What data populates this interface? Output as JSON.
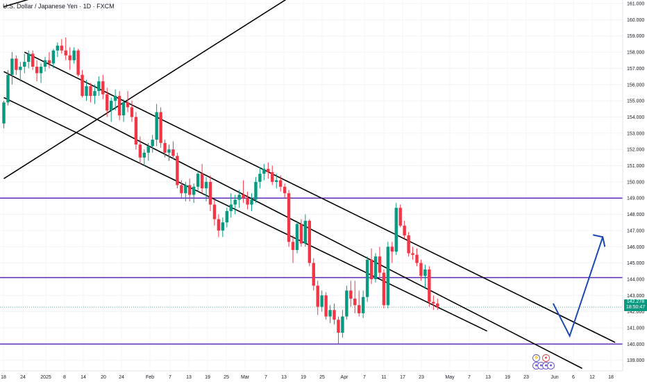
{
  "header": {
    "title": "U.S. Dollar / Japanese Yen · 1D · FXCM"
  },
  "price_badge": {
    "price": "142.278",
    "countdown": "18:50:47"
  },
  "colors": {
    "up": "#089981",
    "down": "#f23645",
    "level": "#5b2bb8",
    "trend": "#000000",
    "projection": "#1848b0"
  },
  "events": {
    "icons": [
      "lightning-icon",
      "flag-icon",
      "flag-icon",
      "flag-icon",
      "flag-icon",
      "flag-icon"
    ]
  },
  "chart_data": {
    "type": "candlestick",
    "title": "U.S. Dollar / Japanese Yen · 1D · FXCM",
    "y_ticks": [
      "161.000",
      "160.000",
      "159.000",
      "158.000",
      "157.000",
      "156.000",
      "155.000",
      "154.000",
      "153.000",
      "152.000",
      "151.000",
      "150.000",
      "149.000",
      "148.000",
      "147.000",
      "146.000",
      "145.000",
      "144.000",
      "143.000",
      "142.000",
      "141.000",
      "140.000",
      "139.000"
    ],
    "x_ticks": [
      "18",
      "24",
      "2025",
      "8",
      "14",
      "20",
      "24",
      "Feb",
      "7",
      "13",
      "19",
      "25",
      "Mar",
      "7",
      "13",
      "19",
      "25",
      "Apr",
      "7",
      "11",
      "17",
      "23",
      "May",
      "7",
      "13",
      "19",
      "23",
      "Jun",
      "6",
      "12",
      "18"
    ],
    "ylim": [
      138.4,
      161.2
    ],
    "horizontal_levels": [
      149.0,
      144.1,
      140.0
    ],
    "current_price": 142.278,
    "candles": [
      {
        "o": 153.6,
        "h": 155.0,
        "l": 153.3,
        "c": 154.9
      },
      {
        "o": 154.9,
        "h": 156.9,
        "l": 154.7,
        "c": 156.6
      },
      {
        "o": 156.6,
        "h": 158.0,
        "l": 156.0,
        "c": 157.6
      },
      {
        "o": 157.6,
        "h": 157.8,
        "l": 156.6,
        "c": 156.9
      },
      {
        "o": 156.9,
        "h": 157.4,
        "l": 156.2,
        "c": 157.1
      },
      {
        "o": 157.1,
        "h": 157.9,
        "l": 156.7,
        "c": 157.4
      },
      {
        "o": 157.4,
        "h": 158.1,
        "l": 157.0,
        "c": 157.9
      },
      {
        "o": 157.9,
        "h": 158.1,
        "l": 156.9,
        "c": 157.1
      },
      {
        "o": 157.1,
        "h": 157.5,
        "l": 156.2,
        "c": 156.7
      },
      {
        "o": 156.7,
        "h": 157.3,
        "l": 156.1,
        "c": 157.1
      },
      {
        "o": 157.1,
        "h": 157.7,
        "l": 156.8,
        "c": 157.5
      },
      {
        "o": 157.5,
        "h": 158.0,
        "l": 157.0,
        "c": 157.3
      },
      {
        "o": 157.3,
        "h": 158.2,
        "l": 157.0,
        "c": 158.1
      },
      {
        "o": 158.1,
        "h": 158.6,
        "l": 157.7,
        "c": 158.4
      },
      {
        "o": 158.4,
        "h": 158.8,
        "l": 157.9,
        "c": 158.1
      },
      {
        "o": 158.1,
        "h": 158.9,
        "l": 157.5,
        "c": 157.8
      },
      {
        "o": 157.8,
        "h": 158.3,
        "l": 156.9,
        "c": 157.5
      },
      {
        "o": 157.5,
        "h": 158.3,
        "l": 157.3,
        "c": 158.1
      },
      {
        "o": 158.1,
        "h": 158.2,
        "l": 156.5,
        "c": 156.6
      },
      {
        "o": 156.6,
        "h": 156.9,
        "l": 155.2,
        "c": 155.3
      },
      {
        "o": 155.3,
        "h": 156.3,
        "l": 155.0,
        "c": 155.9
      },
      {
        "o": 155.9,
        "h": 156.1,
        "l": 154.9,
        "c": 155.3
      },
      {
        "o": 155.3,
        "h": 156.0,
        "l": 154.8,
        "c": 155.6
      },
      {
        "o": 155.6,
        "h": 156.5,
        "l": 155.3,
        "c": 156.2
      },
      {
        "o": 156.2,
        "h": 156.6,
        "l": 155.1,
        "c": 155.4
      },
      {
        "o": 155.4,
        "h": 155.8,
        "l": 154.0,
        "c": 154.4
      },
      {
        "o": 154.4,
        "h": 155.2,
        "l": 153.7,
        "c": 155.0
      },
      {
        "o": 155.0,
        "h": 155.7,
        "l": 154.4,
        "c": 155.3
      },
      {
        "o": 155.3,
        "h": 155.6,
        "l": 153.8,
        "c": 154.1
      },
      {
        "o": 154.1,
        "h": 155.1,
        "l": 153.7,
        "c": 154.9
      },
      {
        "o": 154.9,
        "h": 155.6,
        "l": 154.3,
        "c": 154.6
      },
      {
        "o": 154.6,
        "h": 155.0,
        "l": 153.7,
        "c": 154.0
      },
      {
        "o": 154.0,
        "h": 154.3,
        "l": 152.0,
        "c": 152.3
      },
      {
        "o": 152.3,
        "h": 152.8,
        "l": 151.1,
        "c": 151.5
      },
      {
        "o": 151.5,
        "h": 152.0,
        "l": 151.0,
        "c": 151.8
      },
      {
        "o": 151.8,
        "h": 152.4,
        "l": 151.3,
        "c": 152.2
      },
      {
        "o": 152.2,
        "h": 152.9,
        "l": 151.8,
        "c": 152.6
      },
      {
        "o": 152.6,
        "h": 154.8,
        "l": 152.2,
        "c": 154.3
      },
      {
        "o": 154.3,
        "h": 154.6,
        "l": 152.1,
        "c": 152.4
      },
      {
        "o": 152.4,
        "h": 152.6,
        "l": 151.5,
        "c": 151.8
      },
      {
        "o": 151.8,
        "h": 152.3,
        "l": 151.3,
        "c": 152.0
      },
      {
        "o": 152.0,
        "h": 152.5,
        "l": 151.4,
        "c": 151.6
      },
      {
        "o": 151.6,
        "h": 151.8,
        "l": 149.6,
        "c": 149.8
      },
      {
        "o": 149.8,
        "h": 150.1,
        "l": 149.0,
        "c": 149.3
      },
      {
        "o": 149.3,
        "h": 150.0,
        "l": 148.8,
        "c": 149.8
      },
      {
        "o": 149.8,
        "h": 150.2,
        "l": 148.8,
        "c": 149.2
      },
      {
        "o": 149.2,
        "h": 149.9,
        "l": 148.7,
        "c": 149.7
      },
      {
        "o": 149.7,
        "h": 150.7,
        "l": 149.4,
        "c": 150.5
      },
      {
        "o": 150.5,
        "h": 151.1,
        "l": 149.3,
        "c": 149.6
      },
      {
        "o": 149.6,
        "h": 150.3,
        "l": 148.8,
        "c": 150.0
      },
      {
        "o": 150.0,
        "h": 150.4,
        "l": 148.2,
        "c": 148.6
      },
      {
        "o": 148.6,
        "h": 148.9,
        "l": 147.3,
        "c": 147.7
      },
      {
        "o": 147.7,
        "h": 148.0,
        "l": 146.6,
        "c": 147.0
      },
      {
        "o": 147.0,
        "h": 147.8,
        "l": 146.6,
        "c": 147.5
      },
      {
        "o": 147.5,
        "h": 148.4,
        "l": 147.2,
        "c": 148.2
      },
      {
        "o": 148.2,
        "h": 149.3,
        "l": 147.8,
        "c": 148.6
      },
      {
        "o": 148.6,
        "h": 149.2,
        "l": 148.0,
        "c": 148.9
      },
      {
        "o": 148.9,
        "h": 149.5,
        "l": 148.4,
        "c": 149.2
      },
      {
        "o": 149.2,
        "h": 150.1,
        "l": 148.7,
        "c": 149.0
      },
      {
        "o": 149.0,
        "h": 149.4,
        "l": 148.3,
        "c": 148.6
      },
      {
        "o": 148.6,
        "h": 149.3,
        "l": 148.2,
        "c": 148.9
      },
      {
        "o": 148.9,
        "h": 150.3,
        "l": 148.7,
        "c": 150.0
      },
      {
        "o": 150.0,
        "h": 150.9,
        "l": 149.6,
        "c": 150.5
      },
      {
        "o": 150.5,
        "h": 151.1,
        "l": 150.1,
        "c": 150.8
      },
      {
        "o": 150.8,
        "h": 151.2,
        "l": 150.2,
        "c": 150.6
      },
      {
        "o": 150.6,
        "h": 151.0,
        "l": 149.8,
        "c": 150.0
      },
      {
        "o": 150.0,
        "h": 150.5,
        "l": 149.6,
        "c": 150.1
      },
      {
        "o": 150.1,
        "h": 150.4,
        "l": 149.4,
        "c": 149.7
      },
      {
        "o": 149.7,
        "h": 149.9,
        "l": 149.0,
        "c": 149.3
      },
      {
        "o": 149.3,
        "h": 149.5,
        "l": 146.0,
        "c": 146.3
      },
      {
        "o": 146.3,
        "h": 146.7,
        "l": 145.0,
        "c": 145.8
      },
      {
        "o": 145.8,
        "h": 147.6,
        "l": 145.6,
        "c": 147.4
      },
      {
        "o": 147.4,
        "h": 147.7,
        "l": 146.0,
        "c": 146.2
      },
      {
        "o": 146.2,
        "h": 148.0,
        "l": 146.0,
        "c": 147.6
      },
      {
        "o": 147.6,
        "h": 147.7,
        "l": 144.8,
        "c": 145.0
      },
      {
        "o": 145.0,
        "h": 145.3,
        "l": 143.3,
        "c": 143.6
      },
      {
        "o": 143.6,
        "h": 143.9,
        "l": 141.8,
        "c": 142.3
      },
      {
        "o": 142.3,
        "h": 143.3,
        "l": 142.0,
        "c": 143.0
      },
      {
        "o": 143.0,
        "h": 143.2,
        "l": 141.5,
        "c": 141.7
      },
      {
        "o": 141.7,
        "h": 142.4,
        "l": 141.3,
        "c": 142.1
      },
      {
        "o": 142.1,
        "h": 142.5,
        "l": 141.2,
        "c": 141.5
      },
      {
        "o": 141.5,
        "h": 141.7,
        "l": 140.0,
        "c": 140.7
      },
      {
        "o": 140.7,
        "h": 142.1,
        "l": 140.4,
        "c": 141.7
      },
      {
        "o": 141.7,
        "h": 143.6,
        "l": 141.5,
        "c": 143.3
      },
      {
        "o": 143.3,
        "h": 143.9,
        "l": 142.3,
        "c": 142.8
      },
      {
        "o": 142.8,
        "h": 143.9,
        "l": 141.9,
        "c": 142.4
      },
      {
        "o": 142.4,
        "h": 143.3,
        "l": 141.7,
        "c": 141.9
      },
      {
        "o": 141.9,
        "h": 143.3,
        "l": 141.6,
        "c": 142.9
      },
      {
        "o": 142.9,
        "h": 145.4,
        "l": 142.6,
        "c": 145.2
      },
      {
        "o": 145.2,
        "h": 145.9,
        "l": 143.7,
        "c": 144.0
      },
      {
        "o": 144.0,
        "h": 145.6,
        "l": 143.8,
        "c": 145.4
      },
      {
        "o": 145.4,
        "h": 146.0,
        "l": 144.1,
        "c": 144.4
      },
      {
        "o": 144.4,
        "h": 144.6,
        "l": 142.2,
        "c": 142.4
      },
      {
        "o": 142.4,
        "h": 146.3,
        "l": 142.2,
        "c": 146.0
      },
      {
        "o": 146.0,
        "h": 146.3,
        "l": 145.0,
        "c": 145.7
      },
      {
        "o": 145.7,
        "h": 148.7,
        "l": 145.5,
        "c": 148.4
      },
      {
        "o": 148.4,
        "h": 148.6,
        "l": 147.2,
        "c": 147.3
      },
      {
        "o": 147.3,
        "h": 147.6,
        "l": 146.5,
        "c": 146.7
      },
      {
        "o": 146.7,
        "h": 146.9,
        "l": 145.4,
        "c": 145.6
      },
      {
        "o": 145.6,
        "h": 146.0,
        "l": 145.2,
        "c": 145.5
      },
      {
        "o": 145.5,
        "h": 145.9,
        "l": 144.8,
        "c": 145.0
      },
      {
        "o": 145.0,
        "h": 145.2,
        "l": 143.9,
        "c": 144.2
      },
      {
        "o": 144.2,
        "h": 144.9,
        "l": 143.4,
        "c": 144.6
      },
      {
        "o": 144.6,
        "h": 144.8,
        "l": 142.3,
        "c": 142.6
      },
      {
        "o": 142.6,
        "h": 143.0,
        "l": 142.1,
        "c": 142.5
      },
      {
        "o": 142.5,
        "h": 142.8,
        "l": 142.1,
        "c": 142.3
      }
    ],
    "trend_lines": [
      {
        "t1": 0,
        "p1": 155.2,
        "t2": 117,
        "p2": 140.8
      },
      {
        "t1": 5,
        "p1": 158.0,
        "t2": 148,
        "p2": 140.1
      },
      {
        "t1": 0,
        "p1": 156.8,
        "t2": 140,
        "p2": 138.5
      },
      {
        "t1": 0,
        "p1": 150.2,
        "t2": 73,
        "p2": 162.0
      },
      {
        "t1": 0,
        "p1": 160.8,
        "t2": 16,
        "p2": 162.0
      }
    ],
    "projection_path": [
      {
        "t": 133,
        "p": 142.5
      },
      {
        "t": 137,
        "p": 140.5
      },
      {
        "t": 145,
        "p": 146.6
      }
    ]
  }
}
